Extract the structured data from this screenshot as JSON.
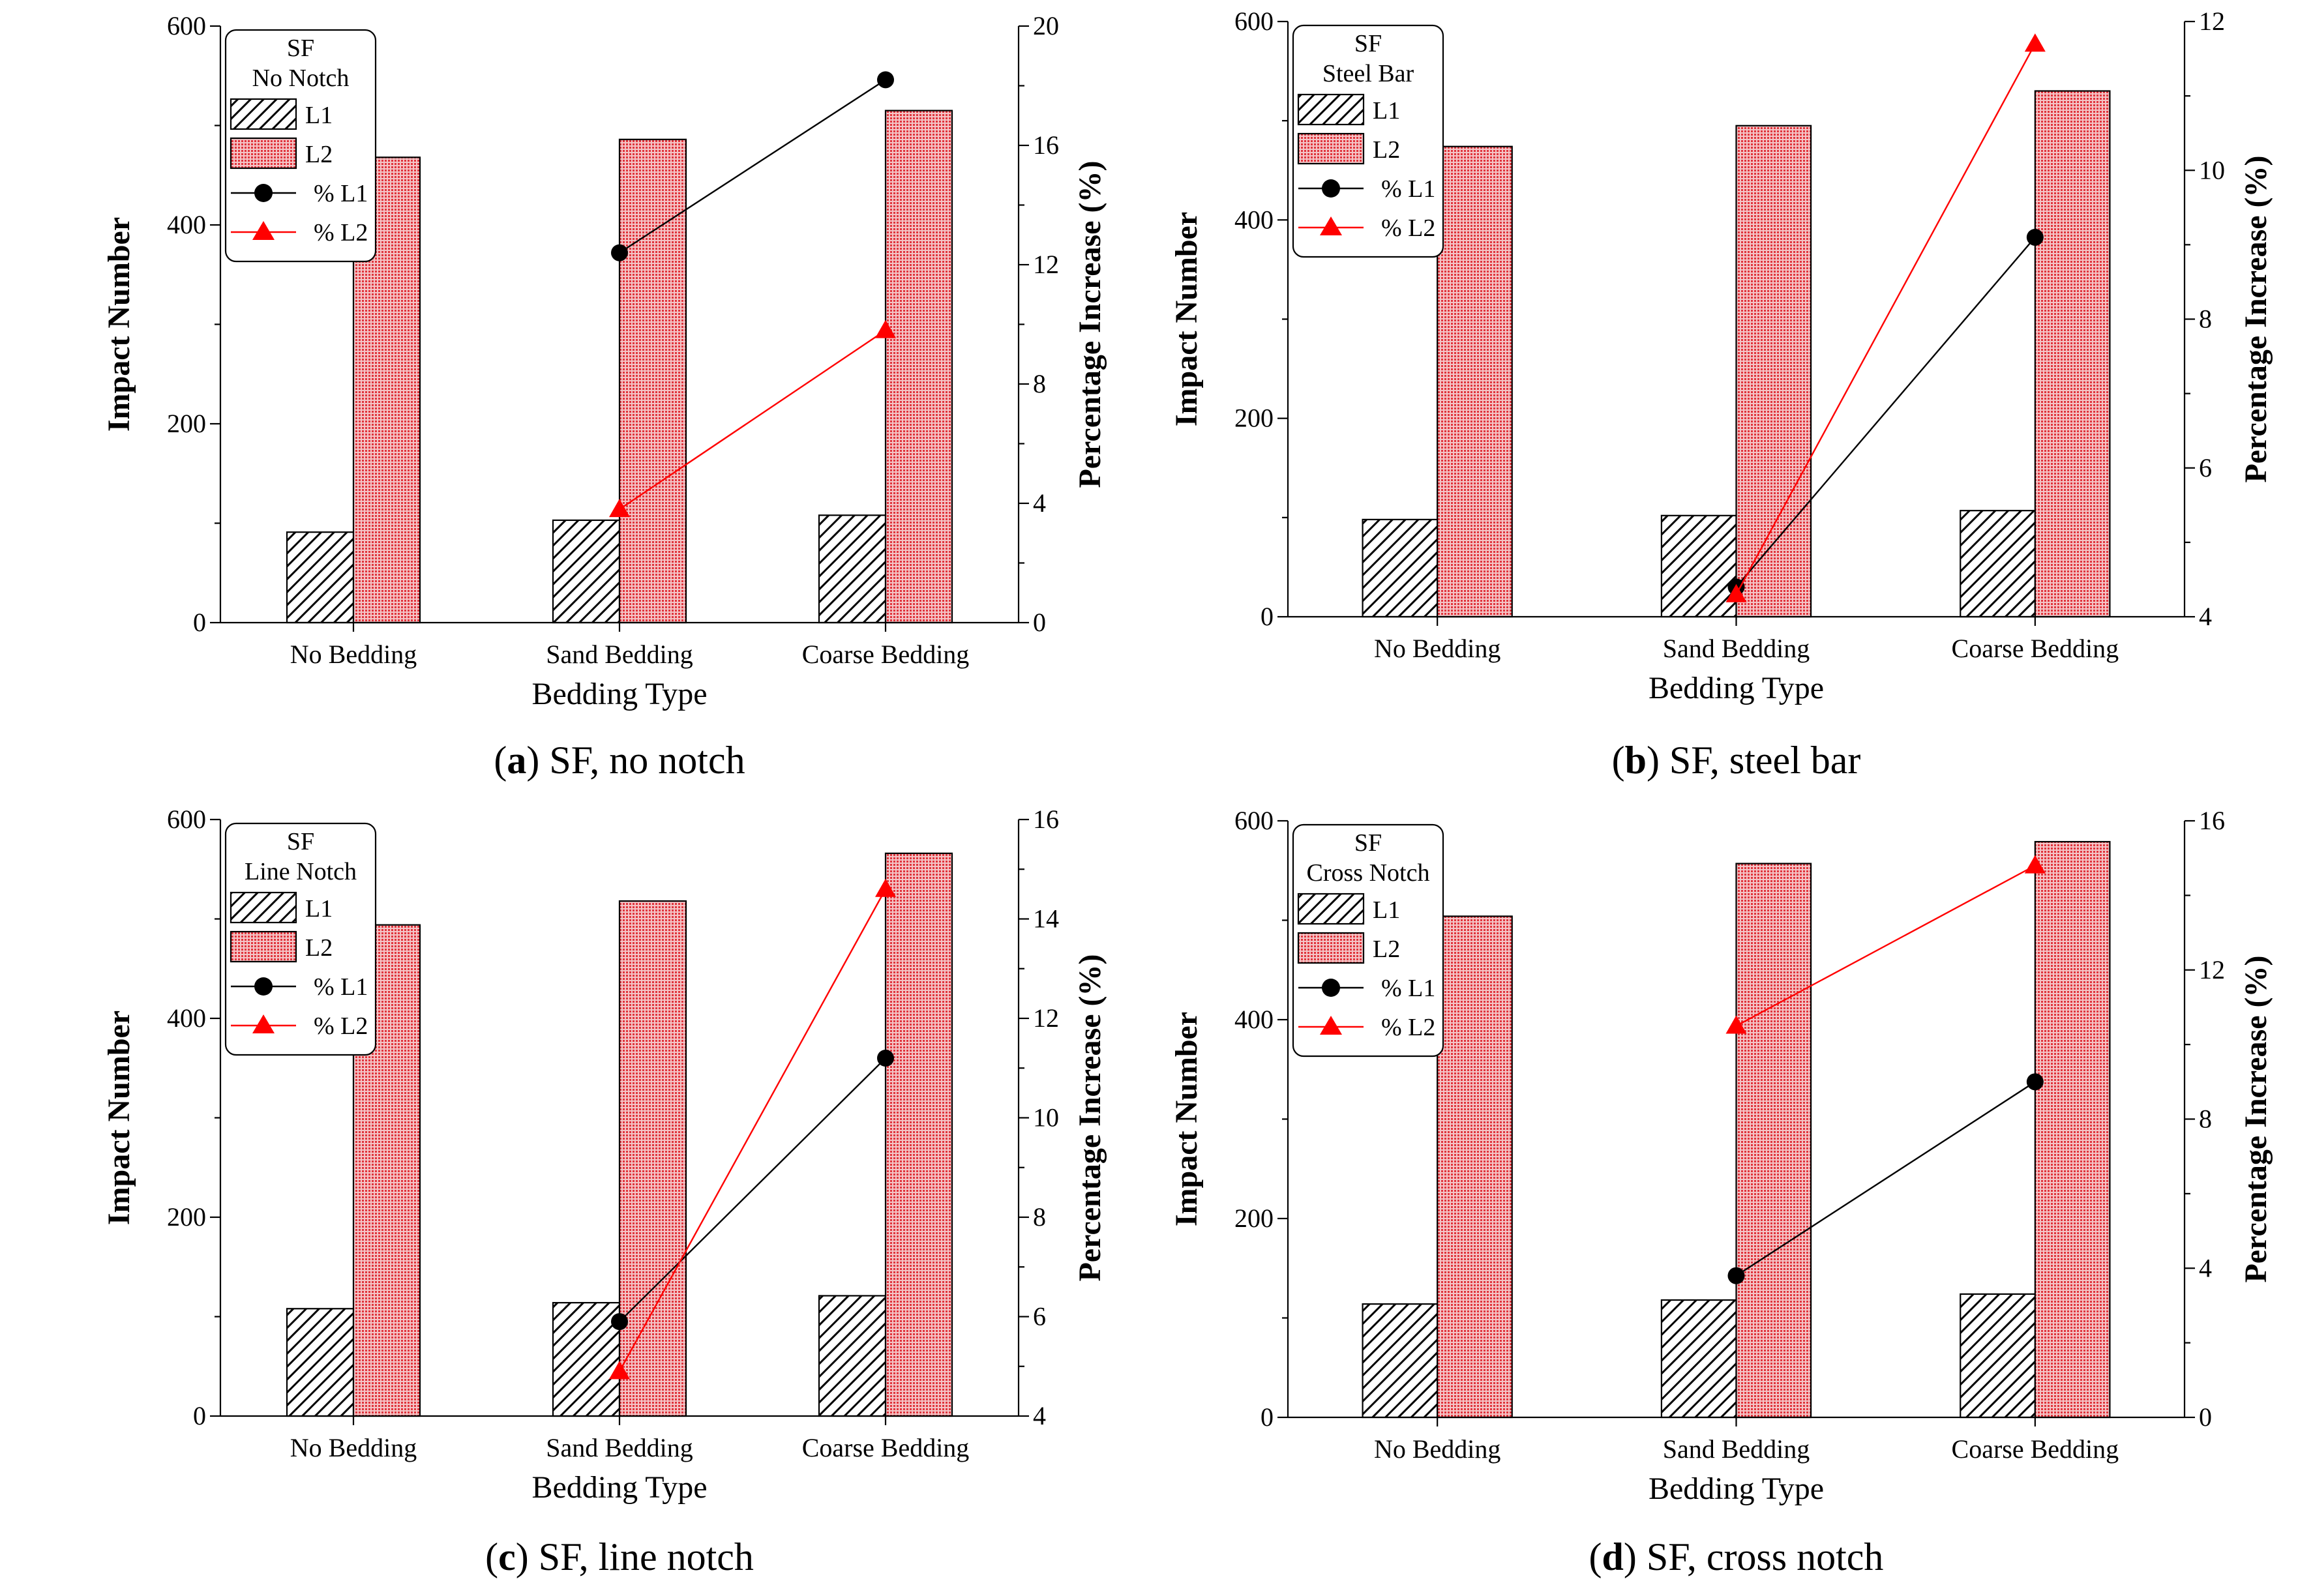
{
  "colors": {
    "l1_line": "#000000",
    "l2_line": "#ff0000",
    "l2_fill": "#e8787c",
    "l1_hatch": "#000000"
  },
  "chart_data": [
    {
      "type": "bar",
      "caption_letter": "a",
      "caption_text": "SF, no notch",
      "legend_title": [
        "SF",
        "No Notch"
      ],
      "legend_entries": [
        "L1",
        "L2",
        "% L1",
        "% L2"
      ],
      "xlabel": "Bedding Type",
      "ylabel": "Impact Number",
      "y2label": "Percentage Increase (%)",
      "categories": [
        "No Bedding",
        "Sand Bedding",
        "Coarse Bedding"
      ],
      "ylim": [
        0,
        600
      ],
      "yticks": [
        0,
        200,
        400,
        600
      ],
      "y2lim": [
        0,
        20
      ],
      "y2ticks": [
        0,
        4,
        8,
        12,
        16,
        20
      ],
      "series": [
        {
          "name": "L1",
          "values": [
            91,
            103,
            108
          ]
        },
        {
          "name": "L2",
          "values": [
            468,
            486,
            515
          ]
        }
      ],
      "pct_series": [
        {
          "name": "% L1",
          "values": [
            null,
            12.4,
            18.2
          ]
        },
        {
          "name": "% L2",
          "values": [
            null,
            3.8,
            9.8
          ]
        }
      ]
    },
    {
      "type": "bar",
      "caption_letter": "b",
      "caption_text": "SF, steel bar",
      "legend_title": [
        "SF",
        "Steel Bar"
      ],
      "legend_entries": [
        "L1",
        "L2",
        "% L1",
        "% L2"
      ],
      "xlabel": "Bedding Type",
      "ylabel": "Impact Number",
      "y2label": "Percentage Increase (%)",
      "categories": [
        "No Bedding",
        "Sand Bedding",
        "Coarse Bedding"
      ],
      "ylim": [
        0,
        600
      ],
      "yticks": [
        0,
        200,
        400,
        600
      ],
      "y2lim": [
        4,
        12
      ],
      "y2ticks": [
        4,
        6,
        8,
        10,
        12
      ],
      "series": [
        {
          "name": "L1",
          "values": [
            98,
            102,
            107
          ]
        },
        {
          "name": "L2",
          "values": [
            474,
            495,
            530
          ]
        }
      ],
      "pct_series": [
        {
          "name": "% L1",
          "values": [
            null,
            4.4,
            9.1
          ]
        },
        {
          "name": "% L2",
          "values": [
            null,
            4.3,
            11.7
          ]
        }
      ]
    },
    {
      "type": "bar",
      "caption_letter": "c",
      "caption_text": "SF, line notch",
      "legend_title": [
        "SF",
        "Line Notch"
      ],
      "legend_entries": [
        "L1",
        "L2",
        "% L1",
        "% L2"
      ],
      "xlabel": "Bedding Type",
      "ylabel": "Impact Number",
      "y2label": "Percentage Increase (%)",
      "categories": [
        "No Bedding",
        "Sand Bedding",
        "Coarse Bedding"
      ],
      "ylim": [
        0,
        600
      ],
      "yticks": [
        0,
        200,
        400,
        600
      ],
      "y2lim": [
        4,
        16
      ],
      "y2ticks": [
        4,
        6,
        8,
        10,
        12,
        14,
        16
      ],
      "series": [
        {
          "name": "L1",
          "values": [
            108,
            114,
            121
          ]
        },
        {
          "name": "L2",
          "values": [
            494,
            518,
            566
          ]
        }
      ],
      "pct_series": [
        {
          "name": "% L1",
          "values": [
            null,
            5.9,
            11.2
          ]
        },
        {
          "name": "% L2",
          "values": [
            null,
            4.9,
            14.6
          ]
        }
      ]
    },
    {
      "type": "bar",
      "caption_letter": "d",
      "caption_text": "SF, cross notch",
      "legend_title": [
        "SF",
        "Cross Notch"
      ],
      "legend_entries": [
        "L1",
        "L2",
        "% L1",
        "% L2"
      ],
      "xlabel": "Bedding Type",
      "ylabel": "Impact Number",
      "y2label": "Percentage Increase (%)",
      "categories": [
        "No Bedding",
        "Sand Bedding",
        "Coarse Bedding"
      ],
      "ylim": [
        0,
        600
      ],
      "yticks": [
        0,
        200,
        400,
        600
      ],
      "y2lim": [
        0,
        16
      ],
      "y2ticks": [
        0,
        4,
        8,
        12,
        16
      ],
      "series": [
        {
          "name": "L1",
          "values": [
            114,
            118,
            124
          ]
        },
        {
          "name": "L2",
          "values": [
            504,
            557,
            579
          ]
        }
      ],
      "pct_series": [
        {
          "name": "% L1",
          "values": [
            null,
            3.8,
            9.0
          ]
        },
        {
          "name": "% L2",
          "values": [
            null,
            10.5,
            14.8
          ]
        }
      ]
    }
  ]
}
